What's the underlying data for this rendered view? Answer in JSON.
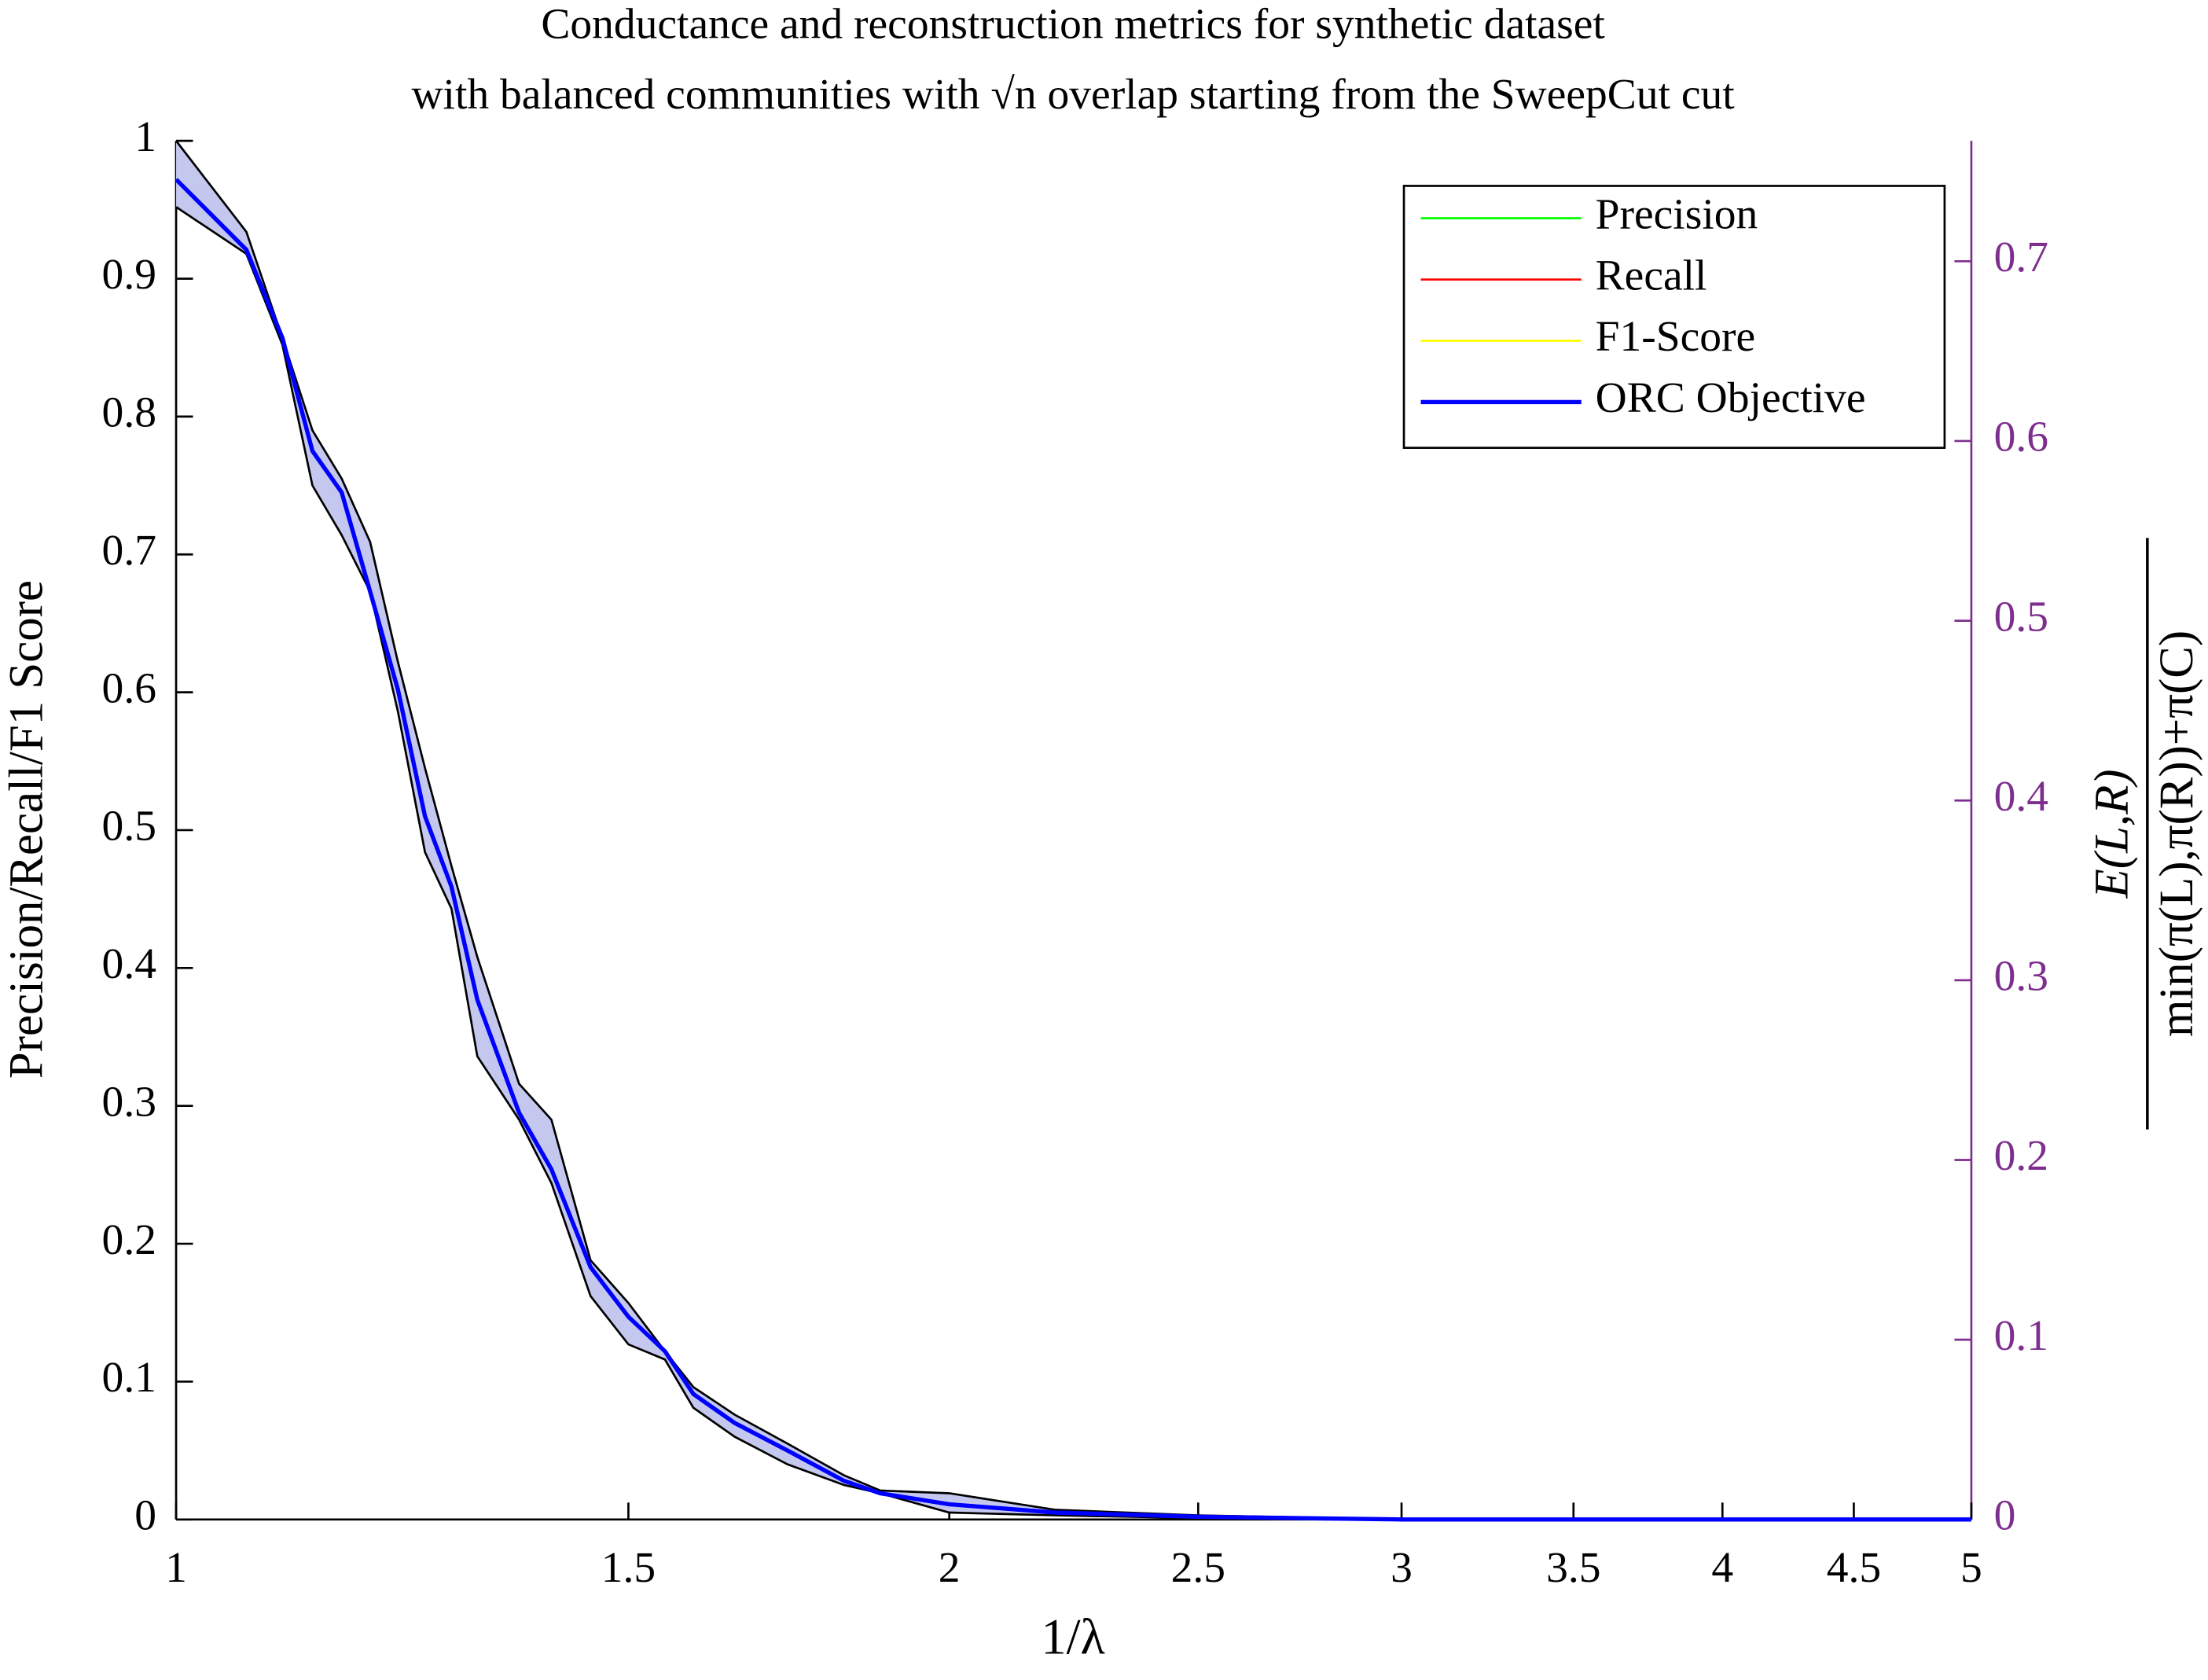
{
  "chart_data": {
    "type": "line",
    "title": [
      "Conductance and reconstruction metrics for synthetic dataset",
      "with balanced communities with √n overlap starting from the SweepCut cut"
    ],
    "xlabel": "1/λ",
    "ylabel": "Precision/Recall/F1 Score",
    "y2label": {
      "numerator": "E(L,R)",
      "denominator": "min(π(L),π(R))+π(C)"
    },
    "xscale": "log",
    "xlim": [
      1,
      5
    ],
    "xticks": [
      1,
      1.5,
      2,
      2.5,
      3,
      3.5,
      4,
      4.5,
      5
    ],
    "ylim": [
      0,
      1
    ],
    "yticks": [
      0,
      0.1,
      0.2,
      0.3,
      0.4,
      0.5,
      0.6,
      0.7,
      0.8,
      0.9,
      1
    ],
    "y2lim": [
      0,
      0.767
    ],
    "y2ticks": [
      0,
      0.1,
      0.2,
      0.3,
      0.4,
      0.5,
      0.6,
      0.7
    ],
    "y2color": "#7e2f8e",
    "legend": "upper right",
    "x": [
      1,
      1.065,
      1.1,
      1.13,
      1.16,
      1.19,
      1.22,
      1.25,
      1.28,
      1.31,
      1.36,
      1.4,
      1.45,
      1.5,
      1.55,
      1.59,
      1.65,
      1.73,
      1.82,
      1.88,
      2,
      2.2,
      2.5,
      3,
      4,
      5
    ],
    "series": [
      {
        "name": "Precision",
        "color": "#00ff00",
        "values": [
          null,
          null,
          null,
          null,
          null,
          null,
          null,
          null,
          null,
          null,
          null,
          null,
          null,
          null,
          null,
          null,
          null,
          null,
          null,
          null,
          null,
          null,
          null,
          null,
          null,
          null
        ]
      },
      {
        "name": "Recall",
        "color": "#ff0000",
        "values": [
          null,
          null,
          null,
          null,
          null,
          null,
          null,
          null,
          null,
          null,
          null,
          null,
          null,
          null,
          null,
          null,
          null,
          null,
          null,
          null,
          null,
          null,
          null,
          null,
          null,
          null
        ]
      },
      {
        "name": "F1-Score",
        "color": "#ffff00",
        "values": [
          null,
          null,
          null,
          null,
          null,
          null,
          null,
          null,
          null,
          null,
          null,
          null,
          null,
          null,
          null,
          null,
          null,
          null,
          null,
          null,
          null,
          null,
          null,
          null,
          null,
          null
        ]
      },
      {
        "name": "ORC Objective",
        "color": "#0000ff",
        "band_color": "#c5c8ee",
        "values": [
          0.972,
          0.921,
          0.857,
          0.775,
          0.745,
          0.673,
          0.602,
          0.51,
          0.459,
          0.377,
          0.295,
          0.254,
          0.183,
          0.147,
          0.122,
          0.091,
          0.07,
          0.05,
          0.028,
          0.019,
          0.011,
          0.005,
          0.002,
          0,
          0,
          0
        ],
        "upper": [
          1,
          0.934,
          0.857,
          0.79,
          0.755,
          0.709,
          0.622,
          0.545,
          0.474,
          0.408,
          0.316,
          0.29,
          0.188,
          0.157,
          0.122,
          0.096,
          0.076,
          0.055,
          0.032,
          0.021,
          0.019,
          0.007,
          0.003,
          0,
          0,
          0
        ],
        "lower": [
          0.952,
          0.918,
          0.852,
          0.75,
          0.714,
          0.673,
          0.586,
          0.484,
          0.443,
          0.336,
          0.29,
          0.244,
          0.162,
          0.127,
          0.116,
          0.081,
          0.06,
          0.04,
          0.025,
          0.019,
          0.005,
          0.003,
          0.001,
          0,
          0,
          0
        ]
      }
    ]
  }
}
